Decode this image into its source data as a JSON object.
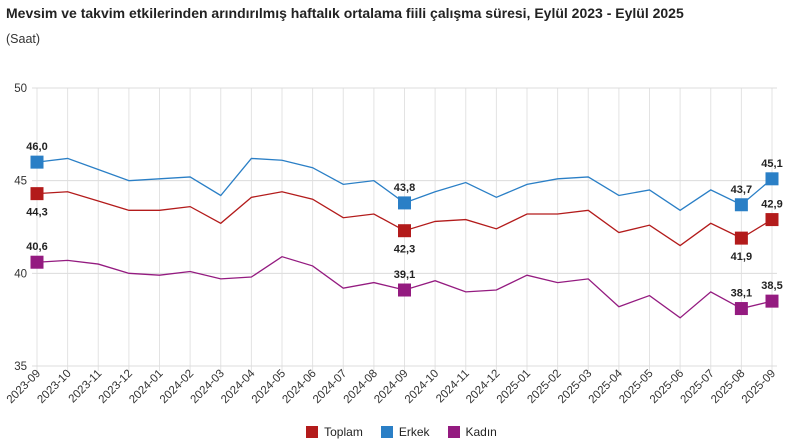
{
  "chart_data": {
    "type": "line",
    "title": "Mevsim ve takvim etkilerinden arındırılmış haftalık ortalama fiili çalışma süresi, Eylül 2023 - Eylül 2025",
    "subtitle": "(Saat)",
    "xlabel": "",
    "ylabel": "",
    "ylim": [
      35,
      50
    ],
    "yticks": [
      35,
      40,
      45,
      50
    ],
    "grid": true,
    "legend": "bottom",
    "categories": [
      "2023-09",
      "2023-10",
      "2023-11",
      "2023-12",
      "2024-01",
      "2024-02",
      "2024-03",
      "2024-04",
      "2024-05",
      "2024-06",
      "2024-07",
      "2024-08",
      "2024-09",
      "2024-10",
      "2024-11",
      "2024-12",
      "2025-01",
      "2025-02",
      "2025-03",
      "2025-04",
      "2025-05",
      "2025-06",
      "2025-07",
      "2025-08",
      "2025-09"
    ],
    "series": [
      {
        "name": "Toplam",
        "color": "#b31b1b",
        "label_pos": "below",
        "values": [
          44.3,
          44.4,
          43.9,
          43.4,
          43.4,
          43.6,
          42.7,
          44.1,
          44.4,
          44.0,
          43.0,
          43.2,
          42.3,
          42.8,
          42.9,
          42.4,
          43.2,
          43.2,
          43.4,
          42.2,
          42.6,
          41.5,
          42.7,
          41.9,
          42.9
        ]
      },
      {
        "name": "Erkek",
        "color": "#2a7fc6",
        "label_pos": "above",
        "values": [
          46.0,
          46.2,
          45.6,
          45.0,
          45.1,
          45.2,
          44.2,
          46.2,
          46.1,
          45.7,
          44.8,
          45.0,
          43.8,
          44.4,
          44.9,
          44.1,
          44.8,
          45.1,
          45.2,
          44.2,
          44.5,
          43.4,
          44.5,
          43.7,
          45.1
        ]
      },
      {
        "name": "Kadın",
        "color": "#941b80",
        "label_pos": "above",
        "values": [
          40.6,
          40.7,
          40.5,
          40.0,
          39.9,
          40.1,
          39.7,
          39.8,
          40.9,
          40.4,
          39.2,
          39.5,
          39.1,
          39.6,
          39.0,
          39.1,
          39.9,
          39.5,
          39.7,
          38.2,
          38.8,
          37.6,
          39.0,
          38.1,
          38.5
        ]
      }
    ],
    "data_labels": [
      {
        "series": 0,
        "index": 0,
        "text": "44,3"
      },
      {
        "series": 0,
        "index": 12,
        "text": "42,3"
      },
      {
        "series": 0,
        "index": 23,
        "text": "41,9"
      },
      {
        "series": 0,
        "index": 24,
        "text": "42,9"
      },
      {
        "series": 1,
        "index": 0,
        "text": "46,0"
      },
      {
        "series": 1,
        "index": 12,
        "text": "43,8"
      },
      {
        "series": 1,
        "index": 23,
        "text": "43,7"
      },
      {
        "series": 1,
        "index": 24,
        "text": "45,1"
      },
      {
        "series": 2,
        "index": 0,
        "text": "40,6"
      },
      {
        "series": 2,
        "index": 12,
        "text": "39,1"
      },
      {
        "series": 2,
        "index": 23,
        "text": "38,1"
      },
      {
        "series": 2,
        "index": 24,
        "text": "38,5"
      }
    ]
  }
}
